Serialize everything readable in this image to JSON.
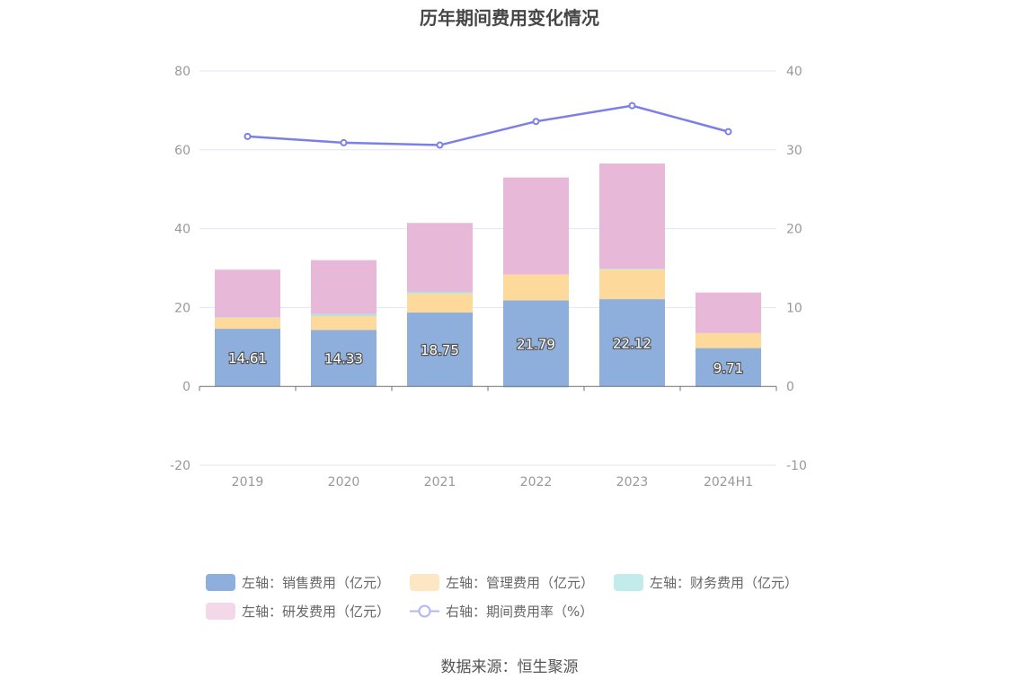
{
  "chart_data": {
    "type": "bar",
    "title": "历年期间费用变化情况",
    "categories": [
      "2019",
      "2020",
      "2021",
      "2022",
      "2023",
      "2024H1"
    ],
    "left_axis": {
      "min": -20,
      "max": 80,
      "ticks": [
        "80",
        "60",
        "40",
        "20",
        "0",
        "-20"
      ]
    },
    "right_axis": {
      "min": -10,
      "max": 40,
      "ticks": [
        "40",
        "30",
        "20",
        "10",
        "0",
        "-10"
      ]
    },
    "series": [
      {
        "name": "左轴：销售费用（亿元）",
        "axis": "left",
        "type": "bar",
        "stack": "total",
        "color": "#8eaedb",
        "values": [
          14.61,
          14.33,
          18.75,
          21.79,
          22.12,
          9.71
        ],
        "labels": [
          "14.61",
          "14.33",
          "18.75",
          "21.79",
          "22.12",
          "9.71"
        ]
      },
      {
        "name": "左轴：管理费用（亿元）",
        "axis": "left",
        "type": "bar",
        "stack": "total",
        "color": "#fdd99b",
        "values": [
          2.8,
          3.5,
          4.8,
          6.6,
          7.5,
          3.8
        ]
      },
      {
        "name": "左轴：财务费用（亿元）",
        "axis": "left",
        "type": "bar",
        "stack": "total",
        "color": "#aee3e3",
        "values": [
          0.1,
          0.5,
          0.4,
          -0.3,
          0.2,
          -0.2
        ]
      },
      {
        "name": "左轴：研发费用（亿元）",
        "axis": "left",
        "type": "bar",
        "stack": "total",
        "color": "#e8b8d9",
        "values": [
          12.1,
          13.7,
          17.5,
          24.6,
          26.7,
          10.3
        ]
      },
      {
        "name": "右轴：期间费用率（%）",
        "axis": "right",
        "type": "line",
        "color": "#7b7fe6",
        "values": [
          31.7,
          30.9,
          30.6,
          33.6,
          35.6,
          32.3
        ]
      }
    ],
    "grid": true,
    "legend_position": "bottom"
  },
  "source_text": "数据来源：恒生聚源"
}
